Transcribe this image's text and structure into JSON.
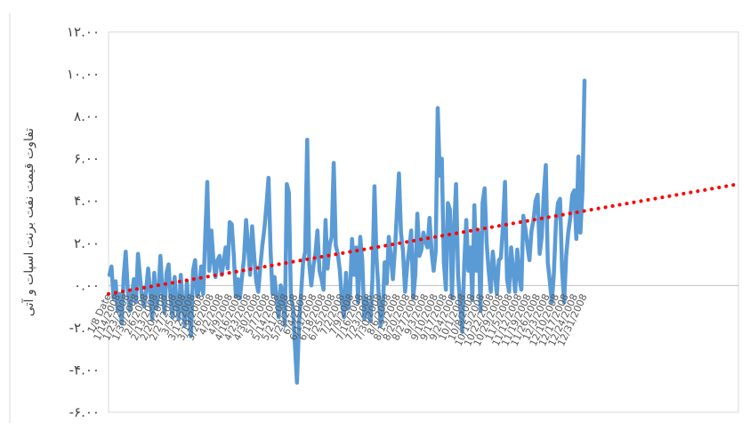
{
  "chart_data": {
    "type": "line",
    "title": "",
    "ylabel": "تفاوت قیمت نفت برنت اسپات و آتی",
    "xlabel": "",
    "ylim": [
      -6,
      12
    ],
    "y_ticks": [
      {
        "value": 12,
        "label": "۱۲.۰۰"
      },
      {
        "value": 10,
        "label": "۱۰.۰۰"
      },
      {
        "value": 8,
        "label": "۸.۰۰"
      },
      {
        "value": 6,
        "label": "۶.۰۰"
      },
      {
        "value": 4,
        "label": "۴.۰۰"
      },
      {
        "value": 2,
        "label": "۲.۰۰"
      },
      {
        "value": 0,
        "label": "۰.۰۰"
      },
      {
        "value": -2,
        "label": "-۲.۰۰"
      },
      {
        "value": -4,
        "label": "-۴.۰۰"
      },
      {
        "value": -6,
        "label": "-۶.۰۰"
      }
    ],
    "x_tick_labels": [
      "1/8 Date",
      "1/14/2008",
      "1/23/2008",
      "1/30/2008",
      "2/6/2008",
      "2/13/2008",
      "2/20/2008",
      "2/27/2008",
      "3/5/2008",
      "3/12/2008",
      "3/19/2008",
      "3/26/2008",
      "4/2/2008",
      "4/9/2008",
      "4/16/2008",
      "4/23/2008",
      "4/30/2008",
      "5/7/2008",
      "5/14/2008",
      "5/21/2008",
      "5/28/2008",
      "6/4/2008",
      "6/11/2008",
      "6/18/2008",
      "6/25/2008",
      "7/2/2008",
      "7/9/2008",
      "7/16/2008",
      "7/23/2008",
      "7/30/2008",
      "8/6/2008",
      "8/13/2008",
      "8/20/2008",
      "8/27/2008",
      "9/3/2008",
      "9/10/2008",
      "9/17/2008",
      "9/24/2008",
      "10/1/2008",
      "10/8/2008",
      "10/15/2008",
      "10/22/2008",
      "10/29/2008",
      "11/5/2008",
      "11/12/2008",
      "11/19/2008",
      "11/26/2008",
      "12/3/2008",
      "12/10/2008",
      "12/17/2008",
      "12/24/2008",
      "12/31/2008"
    ],
    "grid": false,
    "series": [
      {
        "color": "#5b9bd5",
        "values": [
          0.5,
          0.9,
          -0.6,
          0.2,
          -1.2,
          -0.4,
          -1.8,
          0.4,
          1.6,
          -0.2,
          -1.2,
          -0.5,
          0.3,
          -0.8,
          1.5,
          0.4,
          -0.6,
          -1.0,
          -0.2,
          0.8,
          -0.3,
          -1.6,
          0.6,
          -1.1,
          -0.4,
          1.4,
          -0.3,
          -1.3,
          0.6,
          1.0,
          -0.6,
          -1.5,
          0.4,
          -0.8,
          -1.6,
          0.5,
          -1.0,
          -1.9,
          0.2,
          -1.2,
          -2.4,
          0.7,
          1.2,
          -0.5,
          -0.2,
          0.9,
          -0.4,
          2.3,
          4.9,
          0.7,
          2.6,
          1.2,
          0.4,
          1.2,
          1.4,
          0.5,
          1.1,
          1.8,
          0.8,
          3.0,
          2.9,
          1.4,
          -0.5,
          0.3,
          -0.6,
          0.4,
          1.3,
          3.1,
          1.9,
          0.5,
          2.8,
          1.4,
          0.2,
          -0.3,
          0.9,
          1.9,
          2.7,
          3.8,
          5.1,
          1.7,
          -0.4,
          0.4,
          -0.6,
          -1.5,
          0.0,
          -0.3,
          -1.9,
          4.8,
          4.4,
          -0.6,
          -1.0,
          -2.9,
          -4.6,
          -1.8,
          -0.4,
          1.1,
          1.6,
          6.9,
          1.0,
          0.0,
          0.9,
          1.5,
          2.6,
          0.7,
          0.3,
          -0.2,
          3.1,
          0.8,
          1.9,
          2.3,
          5.8,
          1.9,
          1.5,
          0.7,
          -0.7,
          -1.5,
          0.6,
          -1.1,
          -0.4,
          2.2,
          0.5,
          1.8,
          -0.8,
          2.3,
          1.2,
          -1.6,
          -0.6,
          -1.3,
          -1.7,
          0.3,
          4.7,
          1.3,
          -0.3,
          -1.9,
          -1.3,
          1.1,
          0.1,
          2.3,
          1.4,
          0.3,
          1.7,
          3.5,
          5.3,
          2.5,
          1.6,
          -0.3,
          0.9,
          1.7,
          2.6,
          -0.6,
          0.5,
          3.4,
          1.4,
          1.7,
          2.5,
          2.1,
          1.8,
          3.2,
          1.6,
          0.7,
          1.6,
          8.4,
          5.2,
          6.0,
          1.1,
          -0.2,
          3.9,
          3.6,
          -0.6,
          2.6,
          4.8,
          0.5,
          -0.9,
          -2.2,
          1.0,
          3.1,
          0.7,
          1.8,
          -0.7,
          3.8,
          0.7,
          2.5,
          -1.2,
          3.9,
          4.6,
          2.0,
          0.7,
          -0.3,
          1.6,
          0.6,
          -0.4,
          1.2,
          1.3,
          2.8,
          4.9,
          0.3,
          -0.3,
          1.8,
          0.7,
          -0.3,
          1.7,
          0.4,
          -0.2,
          3.3,
          2.7,
          1.9,
          1.2,
          2.6,
          3.1,
          4.0,
          4.3,
          1.5,
          2.3,
          4.3,
          5.7,
          1.1,
          0.2,
          -0.8,
          0.6,
          3.0,
          3.9,
          4.1,
          0.7,
          -0.8,
          1.4,
          2.5,
          3.2,
          4.3,
          4.5,
          2.2,
          6.1,
          2.5,
          4.5,
          9.7
        ]
      },
      {
        "color": "#ff0000",
        "trendline": true,
        "from": {
          "x": 0,
          "y": -0.4
        },
        "to": {
          "x": 1,
          "y": 4.8
        }
      }
    ]
  }
}
